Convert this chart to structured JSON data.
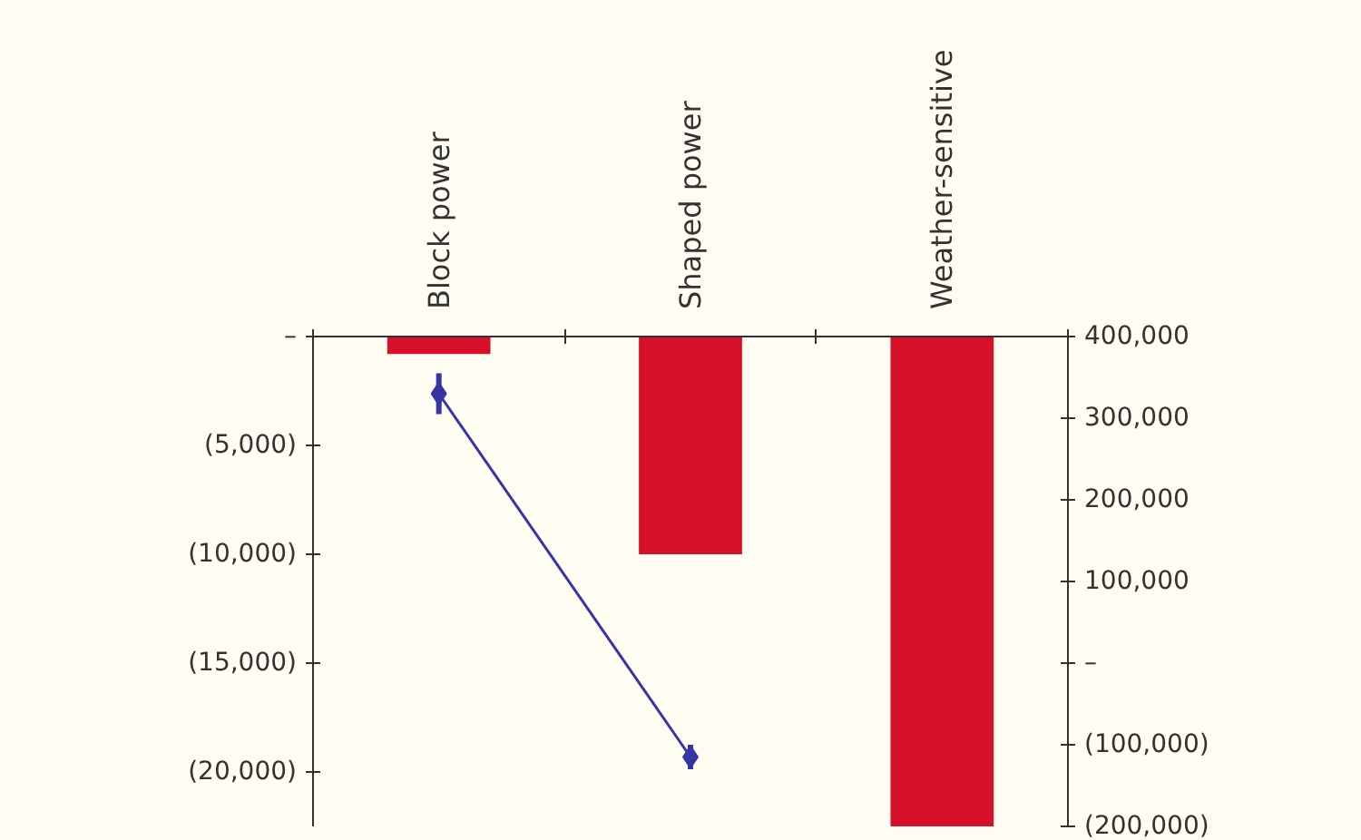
{
  "chart_data": {
    "type": "bar",
    "categories": [
      "Block power",
      "Shaped power",
      "Weather-sensitive"
    ],
    "ylim": [
      -22500,
      0
    ],
    "yticks": [
      {
        "value": 0,
        "label": "–"
      },
      {
        "value": -5000,
        "label": "(5,000)"
      },
      {
        "value": -10000,
        "label": "(10,000)"
      },
      {
        "value": -15000,
        "label": "(15,000)"
      },
      {
        "value": -20000,
        "label": "(20,000)"
      }
    ],
    "y2lim": [
      -200000,
      400000
    ],
    "y2ticks": [
      {
        "value": 400000,
        "label": "400,000"
      },
      {
        "value": 300000,
        "label": "300,000"
      },
      {
        "value": 200000,
        "label": "200,000"
      },
      {
        "value": 100000,
        "label": "100,000"
      },
      {
        "value": 0,
        "label": "–"
      },
      {
        "value": -100000,
        "label": "(100,000)"
      },
      {
        "value": -200000,
        "label": "(200,000)"
      }
    ],
    "series": [
      {
        "color": "#d7102a",
        "values": [
          -800,
          -10000,
          -22500
        ]
      },
      {
        "type": "line",
        "axis": "y2",
        "color": "#3535a5",
        "values": [
          330000,
          -115000,
          null
        ],
        "errors": [
          25000,
          15000,
          null
        ]
      }
    ],
    "marker": "diamond",
    "grid": false
  }
}
